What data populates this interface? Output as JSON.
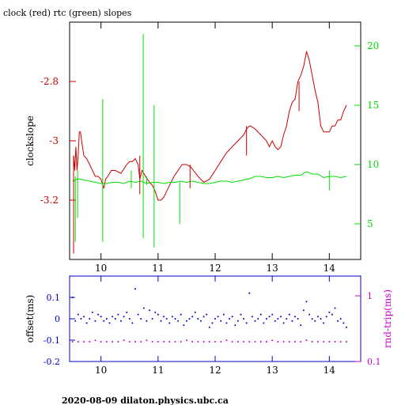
{
  "page_title": "clock (red) rtc (green) slopes",
  "footer": "2020-08-09  dilaton.physics.ubc.ca",
  "colors": {
    "clock": "#cc0000",
    "rtc": "#00dd00",
    "offset": "#0000cc",
    "rndtrip": "#cc00cc",
    "axis": "#000000"
  },
  "chart_data": [
    {
      "type": "line",
      "panel": "top",
      "title": "clock (red) rtc (green) slopes",
      "xlabel": "",
      "ylabel": "clockslope",
      "y2label": "",
      "xlim": [
        9.45,
        14.55
      ],
      "ylim": [
        -3.4,
        -2.6
      ],
      "y2lim": [
        2.0,
        22.0
      ],
      "x_ticks": [
        10,
        11,
        12,
        13,
        14
      ],
      "x_tick_labels": [
        "10",
        "11",
        "12",
        "13",
        "14"
      ],
      "y_ticks": [
        -3.2,
        -3.0,
        -2.8
      ],
      "y_tick_labels": [
        "-3.2",
        "-3",
        "-2.8"
      ],
      "y2_ticks": [
        5,
        10,
        15,
        20
      ],
      "y2_tick_labels": [
        "5",
        "10",
        "15",
        "20"
      ],
      "series": [
        {
          "name": "clock",
          "axis": "left",
          "x": [
            9.52,
            9.54,
            9.56,
            9.58,
            9.6,
            9.62,
            9.64,
            9.66,
            9.7,
            9.75,
            9.8,
            9.85,
            9.9,
            9.95,
            10.0,
            10.05,
            10.08,
            10.12,
            10.18,
            10.25,
            10.35,
            10.45,
            10.5,
            10.55,
            10.6,
            10.65,
            10.68,
            10.72,
            10.78,
            10.85,
            10.9,
            10.95,
            11.0,
            11.05,
            11.1,
            11.15,
            11.2,
            11.28,
            11.35,
            11.42,
            11.5,
            11.58,
            11.62,
            11.7,
            11.8,
            11.9,
            12.0,
            12.1,
            12.2,
            12.3,
            12.4,
            12.5,
            12.55,
            12.6,
            12.62,
            12.7,
            12.8,
            12.9,
            12.95,
            13.0,
            13.05,
            13.1,
            13.15,
            13.2,
            13.25,
            13.3,
            13.35,
            13.4,
            13.45,
            13.5,
            13.55,
            13.6,
            13.62,
            13.65,
            13.7,
            13.75,
            13.8,
            13.85,
            13.9,
            14.0,
            14.05,
            14.1,
            14.15,
            14.2,
            14.25,
            14.3
          ],
          "y": [
            -3.05,
            -3.1,
            -3.02,
            -3.1,
            -3.05,
            -2.97,
            -2.97,
            -3.0,
            -3.05,
            -3.06,
            -3.08,
            -3.1,
            -3.12,
            -3.12,
            -3.13,
            -3.16,
            -3.13,
            -3.12,
            -3.1,
            -3.1,
            -3.11,
            -3.08,
            -3.07,
            -3.07,
            -3.06,
            -3.08,
            -3.13,
            -3.1,
            -3.12,
            -3.14,
            -3.15,
            -3.17,
            -3.2,
            -3.2,
            -3.19,
            -3.17,
            -3.15,
            -3.12,
            -3.1,
            -3.08,
            -3.08,
            -3.09,
            -3.1,
            -3.12,
            -3.14,
            -3.13,
            -3.1,
            -3.07,
            -3.04,
            -3.02,
            -3.0,
            -2.98,
            -2.96,
            -2.95,
            -2.95,
            -2.96,
            -2.98,
            -3.0,
            -3.02,
            -3.0,
            -3.02,
            -3.03,
            -3.02,
            -2.98,
            -2.95,
            -2.9,
            -2.87,
            -2.86,
            -2.8,
            -2.78,
            -2.75,
            -2.7,
            -2.71,
            -2.73,
            -2.78,
            -2.83,
            -2.87,
            -2.95,
            -2.97,
            -2.97,
            -2.95,
            -2.95,
            -2.93,
            -2.93,
            -2.9,
            -2.88
          ]
        },
        {
          "name": "rtc",
          "axis": "right",
          "x": [
            9.5,
            9.6,
            9.7,
            9.8,
            9.9,
            10.0,
            10.1,
            10.2,
            10.3,
            10.4,
            10.5,
            10.6,
            10.7,
            10.8,
            10.9,
            11.0,
            11.1,
            11.2,
            11.3,
            11.4,
            11.5,
            11.6,
            11.7,
            11.8,
            11.9,
            12.0,
            12.1,
            12.2,
            12.3,
            12.4,
            12.5,
            12.6,
            12.7,
            12.8,
            12.9,
            13.0,
            13.1,
            13.2,
            13.3,
            13.4,
            13.5,
            13.6,
            13.7,
            13.8,
            13.9,
            14.0,
            14.1,
            14.2,
            14.3
          ],
          "y": [
            8.6,
            8.8,
            8.7,
            8.6,
            8.5,
            8.4,
            8.4,
            8.5,
            8.5,
            8.4,
            8.6,
            8.5,
            8.6,
            8.4,
            8.5,
            8.5,
            8.4,
            8.5,
            8.5,
            8.6,
            8.5,
            8.6,
            8.5,
            8.4,
            8.4,
            8.5,
            8.6,
            8.6,
            8.5,
            8.6,
            8.7,
            8.8,
            9.0,
            9.0,
            8.9,
            8.9,
            9.0,
            8.9,
            9.0,
            9.1,
            9.1,
            9.4,
            9.2,
            9.2,
            8.9,
            9.0,
            9.0,
            8.9,
            9.0
          ]
        }
      ],
      "spikes": [
        {
          "series": "rtc",
          "x": 9.55,
          "y_from": 3.5,
          "y_to": 9.0
        },
        {
          "series": "rtc",
          "x": 9.59,
          "y_from": 5.5,
          "y_to": 9.5
        },
        {
          "series": "rtc",
          "x": 10.03,
          "y_from": 3.5,
          "y_to": 15.5
        },
        {
          "series": "rtc",
          "x": 10.53,
          "y_from": 8.0,
          "y_to": 9.5
        },
        {
          "series": "rtc",
          "x": 10.74,
          "y_from": 3.8,
          "y_to": 21.0
        },
        {
          "series": "rtc",
          "x": 10.8,
          "y_from": 8.3,
          "y_to": 9.0
        },
        {
          "series": "rtc",
          "x": 10.93,
          "y_from": 3.0,
          "y_to": 15.0
        },
        {
          "series": "rtc",
          "x": 11.38,
          "y_from": 5.0,
          "y_to": 8.5
        },
        {
          "series": "rtc",
          "x": 14.0,
          "y_from": 7.8,
          "y_to": 9.5
        },
        {
          "series": "clock",
          "x": 9.52,
          "y_from": -3.38,
          "y_to": -3.05
        },
        {
          "series": "clock",
          "x": 10.68,
          "y_from": -3.18,
          "y_to": -3.05
        },
        {
          "series": "clock",
          "x": 11.56,
          "y_from": -3.16,
          "y_to": -3.08
        },
        {
          "series": "clock",
          "x": 12.55,
          "y_from": -3.05,
          "y_to": -2.95
        },
        {
          "series": "clock",
          "x": 13.47,
          "y_from": -2.9,
          "y_to": -2.8
        }
      ]
    },
    {
      "type": "scatter",
      "panel": "bottom",
      "xlabel": "",
      "ylabel": "offset(ms)",
      "y2label": "rnd-trip(ms)",
      "xlim": [
        9.45,
        14.55
      ],
      "ylim": [
        -0.2,
        0.2
      ],
      "y2lim": [
        0.1,
        2.0
      ],
      "y2scale": "log",
      "x_ticks": [
        10,
        11,
        12,
        13,
        14
      ],
      "x_tick_labels": [
        "10",
        "11",
        "12",
        "13",
        "14"
      ],
      "y_ticks": [
        -0.2,
        -0.1,
        0,
        0.1
      ],
      "y_tick_labels": [
        "-0.2",
        "-0.1",
        "0",
        "0.1"
      ],
      "y2_ticks": [
        0.1,
        1
      ],
      "y2_tick_labels": [
        "0.1",
        "1"
      ],
      "series": [
        {
          "name": "offset",
          "axis": "left",
          "x": [
            9.5,
            9.55,
            9.6,
            9.65,
            9.7,
            9.75,
            9.8,
            9.85,
            9.9,
            9.95,
            10.0,
            10.05,
            10.1,
            10.15,
            10.2,
            10.25,
            10.3,
            10.35,
            10.4,
            10.45,
            10.5,
            10.55,
            10.6,
            10.65,
            10.7,
            10.75,
            10.8,
            10.85,
            10.9,
            10.95,
            11.0,
            11.05,
            11.1,
            11.15,
            11.2,
            11.25,
            11.3,
            11.35,
            11.4,
            11.45,
            11.5,
            11.55,
            11.6,
            11.65,
            11.7,
            11.75,
            11.8,
            11.85,
            11.9,
            11.95,
            12.0,
            12.05,
            12.1,
            12.15,
            12.2,
            12.25,
            12.3,
            12.35,
            12.4,
            12.45,
            12.5,
            12.55,
            12.6,
            12.65,
            12.7,
            12.75,
            12.8,
            12.85,
            12.9,
            12.95,
            13.0,
            13.05,
            13.1,
            13.15,
            13.2,
            13.25,
            13.3,
            13.35,
            13.4,
            13.45,
            13.5,
            13.55,
            13.6,
            13.65,
            13.7,
            13.75,
            13.8,
            13.85,
            13.9,
            13.95,
            14.0,
            14.05,
            14.1,
            14.15,
            14.2,
            14.25,
            14.3
          ],
          "y": [
            0.1,
            -0.01,
            0.02,
            0.0,
            0.01,
            -0.02,
            0.0,
            0.03,
            -0.01,
            0.02,
            0.01,
            -0.01,
            0.0,
            -0.02,
            0.01,
            0.0,
            0.02,
            -0.01,
            0.01,
            0.03,
            0.0,
            -0.02,
            0.14,
            0.02,
            0.0,
            0.05,
            -0.01,
            0.04,
            0.0,
            0.03,
            0.02,
            -0.01,
            0.01,
            0.0,
            -0.02,
            0.01,
            0.0,
            -0.01,
            0.02,
            -0.03,
            -0.01,
            0.0,
            0.01,
            0.03,
            0.0,
            -0.01,
            0.01,
            0.02,
            -0.04,
            -0.02,
            0.0,
            0.01,
            -0.01,
            0.02,
            -0.02,
            0.0,
            0.01,
            -0.03,
            -0.01,
            0.02,
            0.0,
            -0.02,
            0.12,
            0.01,
            -0.01,
            0.0,
            0.02,
            -0.02,
            0.0,
            0.01,
            0.02,
            -0.01,
            0.0,
            0.01,
            -0.02,
            0.0,
            0.02,
            -0.01,
            0.01,
            0.0,
            -0.03,
            0.04,
            0.08,
            0.02,
            0.0,
            -0.01,
            0.01,
            0.0,
            -0.02,
            0.01,
            0.03,
            0.02,
            0.05,
            -0.01,
            0.0,
            -0.02,
            -0.04
          ]
        },
        {
          "name": "rnd-trip",
          "axis": "right",
          "x": [
            9.5,
            9.6,
            9.7,
            9.8,
            9.9,
            10.0,
            10.1,
            10.2,
            10.3,
            10.4,
            10.5,
            10.6,
            10.7,
            10.8,
            10.9,
            11.0,
            11.1,
            11.2,
            11.3,
            11.4,
            11.5,
            11.6,
            11.7,
            11.8,
            11.9,
            12.0,
            12.1,
            12.2,
            12.3,
            12.4,
            12.5,
            12.6,
            12.7,
            12.8,
            12.9,
            13.0,
            13.1,
            13.2,
            13.3,
            13.4,
            13.5,
            13.6,
            13.7,
            13.8,
            13.9,
            14.0,
            14.1,
            14.2,
            14.3
          ],
          "y": [
            0.2,
            0.2,
            0.2,
            0.2,
            0.21,
            0.2,
            0.2,
            0.2,
            0.2,
            0.21,
            0.2,
            0.2,
            0.2,
            0.21,
            0.2,
            0.2,
            0.2,
            0.2,
            0.2,
            0.2,
            0.21,
            0.2,
            0.2,
            0.2,
            0.2,
            0.2,
            0.2,
            0.21,
            0.2,
            0.2,
            0.2,
            0.2,
            0.2,
            0.2,
            0.2,
            0.21,
            0.2,
            0.2,
            0.2,
            0.2,
            0.2,
            0.21,
            0.2,
            0.2,
            0.2,
            0.2,
            0.2,
            0.2,
            0.2
          ]
        }
      ]
    }
  ]
}
